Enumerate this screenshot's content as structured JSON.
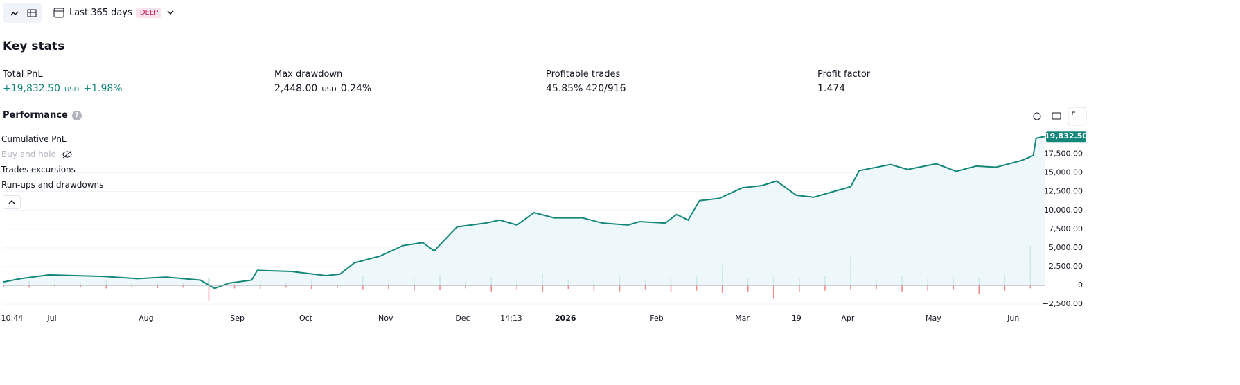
{
  "toolbar": {
    "range": "Last 365 days",
    "badge": "DEEP"
  },
  "key_stats": {
    "title": "Key stats",
    "items": [
      {
        "label": "Total PnL",
        "value": "+19,832.50",
        "unit": "USD",
        "extra": "+1.98%"
      },
      {
        "label": "Max drawdown",
        "value": "2,448.00",
        "unit": "USD",
        "extra": "0.24%"
      },
      {
        "label": "Profitable trades",
        "value": "45.85%",
        "extra": "420/916"
      },
      {
        "label": "Profit factor",
        "value": "1.474"
      }
    ]
  },
  "performance": {
    "title": "Performance",
    "hidden_series": "Buy and hold"
  },
  "chart_data": {
    "type": "line",
    "badge": "19,832.50",
    "xlim": [
      0,
      365
    ],
    "xticks": [
      {
        "value": 3,
        "label": "10:44"
      },
      {
        "value": 17,
        "label": "Jul"
      },
      {
        "value": 50,
        "label": "Aug"
      },
      {
        "value": 82,
        "label": "Sep"
      },
      {
        "value": 106,
        "label": "Oct"
      },
      {
        "value": 134,
        "label": "Nov"
      },
      {
        "value": 161,
        "label": "Dec"
      },
      {
        "value": 178,
        "label": "14:13"
      },
      {
        "value": 197,
        "label": "2026"
      },
      {
        "value": 229,
        "label": "Feb"
      },
      {
        "value": 259,
        "label": "Mar"
      },
      {
        "value": 278,
        "label": "19"
      },
      {
        "value": 296,
        "label": "Apr"
      },
      {
        "value": 326,
        "label": "May"
      },
      {
        "value": 354,
        "label": "Jun"
      }
    ],
    "ylim": [
      -3500,
      20500
    ],
    "yticks": [
      {
        "value": -2500,
        "label": "−2,500.00"
      },
      0,
      {
        "value": 2500,
        "label": "2,500.00"
      },
      {
        "value": 5000,
        "label": "5,000.00"
      },
      {
        "value": 7500,
        "label": "7,500.00"
      },
      {
        "value": 10000,
        "label": "10,000.00"
      },
      {
        "value": 12500,
        "label": "12,500.00"
      },
      {
        "value": 15000,
        "label": "15,000.00"
      },
      {
        "value": 17500,
        "label": "17,500.00"
      }
    ],
    "grid": true,
    "series": [
      {
        "name": "Cumulative PnL",
        "kind": "line",
        "color": "#14877a",
        "x": [
          0,
          6,
          16,
          25,
          35,
          47,
          57,
          69,
          74,
          79,
          87,
          89,
          101,
          113,
          118,
          123,
          132,
          140,
          147,
          151,
          159,
          169,
          174,
          180,
          186,
          193,
          203,
          210,
          219,
          223,
          232,
          236,
          240,
          244,
          251,
          259,
          266,
          271,
          278,
          284,
          290,
          297,
          300,
          311,
          317,
          327,
          334,
          341,
          348,
          357,
          361,
          362,
          365
        ],
        "values": [
          460,
          900,
          1400,
          1300,
          1200,
          900,
          1100,
          700,
          -400,
          300,
          700,
          2000,
          1850,
          1300,
          1500,
          3000,
          3900,
          5300,
          5700,
          4600,
          7800,
          8300,
          8700,
          8050,
          9700,
          9000,
          9000,
          8300,
          8050,
          8500,
          8300,
          9450,
          8700,
          11300,
          11600,
          13000,
          13300,
          13900,
          12000,
          11750,
          12400,
          13150,
          15300,
          16100,
          15450,
          16200,
          15200,
          15900,
          15750,
          16650,
          17300,
          19600,
          19832.5
        ]
      },
      {
        "name": "Trades excursions",
        "kind": "bar",
        "color": "#5bb8ab",
        "x": [
          0,
          9,
          18,
          27,
          36,
          45,
          54,
          63,
          72,
          81,
          90,
          99,
          108,
          117,
          126,
          135,
          144,
          153,
          162,
          171,
          180,
          189,
          198,
          207,
          216,
          225,
          234,
          243,
          252,
          261,
          270,
          279,
          288,
          297,
          306,
          315,
          324,
          333,
          342,
          351,
          360
        ],
        "values": [
          300,
          600,
          250,
          400,
          700,
          350,
          500,
          300,
          900,
          450,
          600,
          400,
          800,
          350,
          1200,
          700,
          900,
          1400,
          600,
          1100,
          800,
          1500,
          700,
          900,
          1300,
          650,
          1000,
          1200,
          2800,
          900,
          1100,
          1000,
          1300,
          3900,
          800,
          1200,
          900,
          1100,
          1000,
          1400,
          5300
        ]
      },
      {
        "name": "Run-ups and drawdowns",
        "kind": "bar",
        "color": "#f08a8a",
        "x": [
          0,
          9,
          18,
          27,
          36,
          45,
          54,
          63,
          72,
          81,
          90,
          99,
          108,
          117,
          126,
          135,
          144,
          153,
          162,
          171,
          180,
          189,
          198,
          207,
          216,
          225,
          234,
          243,
          252,
          261,
          270,
          279,
          288,
          297,
          306,
          315,
          324,
          333,
          342,
          351,
          360
        ],
        "values": [
          -200,
          -300,
          -150,
          -250,
          -400,
          -200,
          -350,
          -300,
          -2000,
          -400,
          -500,
          -300,
          -450,
          -350,
          -600,
          -500,
          -700,
          -650,
          -400,
          -800,
          -600,
          -900,
          -500,
          -700,
          -800,
          -600,
          -900,
          -700,
          -1000,
          -800,
          -1800,
          -900,
          -700,
          -600,
          -500,
          -800,
          -700,
          -600,
          -1100,
          -700,
          -400
        ]
      }
    ]
  }
}
